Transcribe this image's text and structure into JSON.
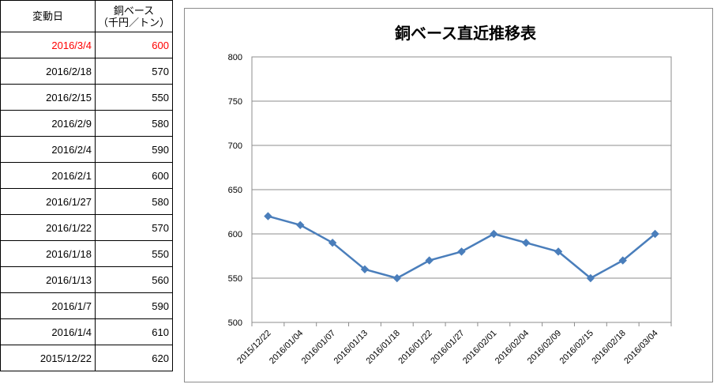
{
  "table": {
    "header": {
      "date": "変動日",
      "price_line1": "銅ベース",
      "price_line2": "（千円／トン）"
    },
    "rows": [
      {
        "date": "2016/3/4",
        "price": "600",
        "highlight": true
      },
      {
        "date": "2016/2/18",
        "price": "570"
      },
      {
        "date": "2016/2/15",
        "price": "550"
      },
      {
        "date": "2016/2/9",
        "price": "580"
      },
      {
        "date": "2016/2/4",
        "price": "590"
      },
      {
        "date": "2016/2/1",
        "price": "600"
      },
      {
        "date": "2016/1/27",
        "price": "580"
      },
      {
        "date": "2016/1/22",
        "price": "570"
      },
      {
        "date": "2016/1/18",
        "price": "550"
      },
      {
        "date": "2016/1/13",
        "price": "560"
      },
      {
        "date": "2016/1/7",
        "price": "590"
      },
      {
        "date": "2016/1/4",
        "price": "610"
      },
      {
        "date": "2015/12/22",
        "price": "620"
      }
    ],
    "highlight_color": "#ff0000"
  },
  "chart_data": {
    "type": "line",
    "title": "銅ベース直近推移表",
    "x": [
      "2015/12/22",
      "2016/01/04",
      "2016/01/07",
      "2016/01/13",
      "2016/01/18",
      "2016/01/22",
      "2016/01/27",
      "2016/02/01",
      "2016/02/04",
      "2016/02/09",
      "2016/02/15",
      "2016/02/18",
      "2016/03/04"
    ],
    "series": [
      {
        "values": [
          620,
          610,
          590,
          560,
          550,
          570,
          580,
          600,
          590,
          580,
          550,
          570,
          600
        ]
      }
    ],
    "ylim": [
      500,
      800
    ],
    "yticks": [
      500,
      550,
      600,
      650,
      700,
      750,
      800
    ],
    "grid": true,
    "marker": "diamond",
    "line_color": "#4a7ebb"
  }
}
